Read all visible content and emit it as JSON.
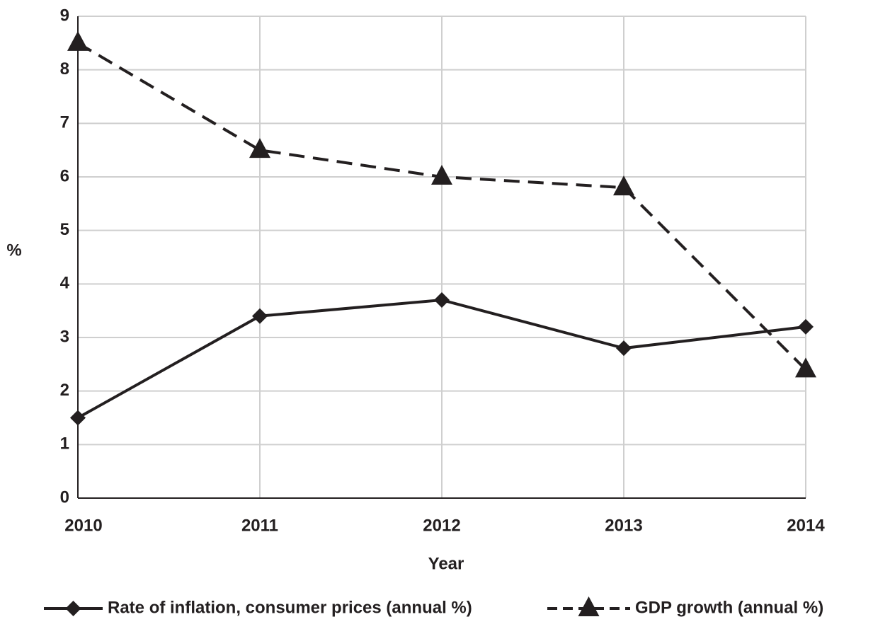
{
  "chart_data": {
    "type": "line",
    "x_label": "Year",
    "y_label": "%",
    "categories": [
      "2010",
      "2011",
      "2012",
      "2013",
      "2014"
    ],
    "series": [
      {
        "name": "Rate of inflation, consumer prices (annual %)",
        "color": "#231f20",
        "marker": "diamond",
        "dashed": false,
        "values": [
          1.5,
          3.4,
          3.7,
          2.8,
          3.2
        ]
      },
      {
        "name": "GDP growth (annual %)",
        "color": "#231f20",
        "marker": "triangle",
        "dashed": true,
        "values": [
          8.5,
          6.5,
          6.0,
          5.8,
          2.4
        ]
      }
    ],
    "ylim": [
      0,
      9
    ],
    "yticks": [
      0,
      1,
      2,
      3,
      4,
      5,
      6,
      7,
      8,
      9
    ],
    "grid": true,
    "legend": "bottom"
  }
}
